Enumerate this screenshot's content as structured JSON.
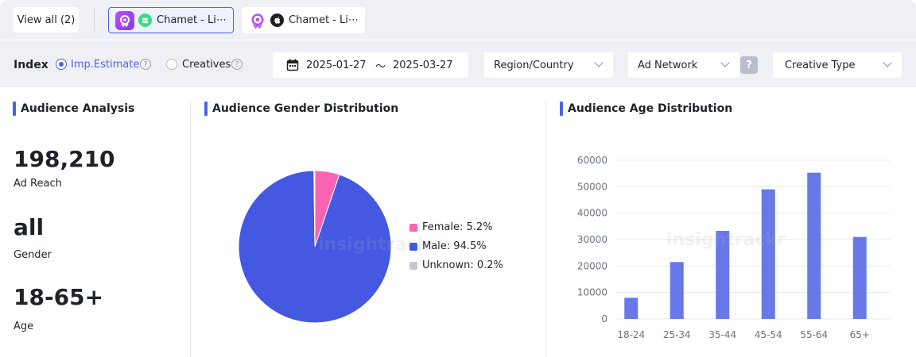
{
  "topbar": {
    "view_all": "View all (2)",
    "tabs": [
      {
        "label": "Chamet - Li⋯",
        "platform": "android",
        "active": true
      },
      {
        "label": "Chamet - Li⋯",
        "platform": "apple",
        "active": false
      }
    ]
  },
  "filters": {
    "index_label": "Index",
    "options": [
      {
        "label": "Imp.Estimate",
        "selected": true
      },
      {
        "label": "Creatives",
        "selected": false
      }
    ],
    "date_start": "2025-01-27",
    "date_sep": "〜",
    "date_end": "2025-03-27",
    "region": "Region/Country",
    "ad_network": "Ad Network",
    "help": "?",
    "creative_type": "Creative Type"
  },
  "audience": {
    "title": "Audience Analysis",
    "reach_value": "198,210",
    "reach_label": "Ad Reach",
    "gender_value": "all",
    "gender_label": "Gender",
    "age_value": "18-65+",
    "age_label": "Age"
  },
  "gender_chart": {
    "title": "Audience Gender Distribution",
    "chart_data": {
      "type": "pie",
      "slices": [
        {
          "label": "Female: 5.2%",
          "value": 5.2,
          "color": "#f963b4"
        },
        {
          "label": "Male: 94.5%",
          "value": 94.5,
          "color": "#4458e2"
        },
        {
          "label": "Unknown: 0.2%",
          "value": 0.2,
          "color": "#c4c8d0"
        }
      ]
    }
  },
  "age_chart": {
    "title": "Audience Age Distribution",
    "chart_data": {
      "type": "bar",
      "categories": [
        "18-24",
        "25-34",
        "35-44",
        "45-54",
        "55-64",
        "65+"
      ],
      "values": [
        8000,
        21500,
        33300,
        49000,
        55300,
        31000
      ],
      "ylim": [
        0,
        60000
      ],
      "yticks": [
        "60000",
        "50000",
        "40000",
        "30000",
        "20000",
        "10000",
        "0"
      ],
      "color": "#6878e8",
      "grid": true
    }
  },
  "watermark": "insightrackr",
  "colors": {
    "accent": "#4f63e0",
    "android": "#3ddc84"
  }
}
